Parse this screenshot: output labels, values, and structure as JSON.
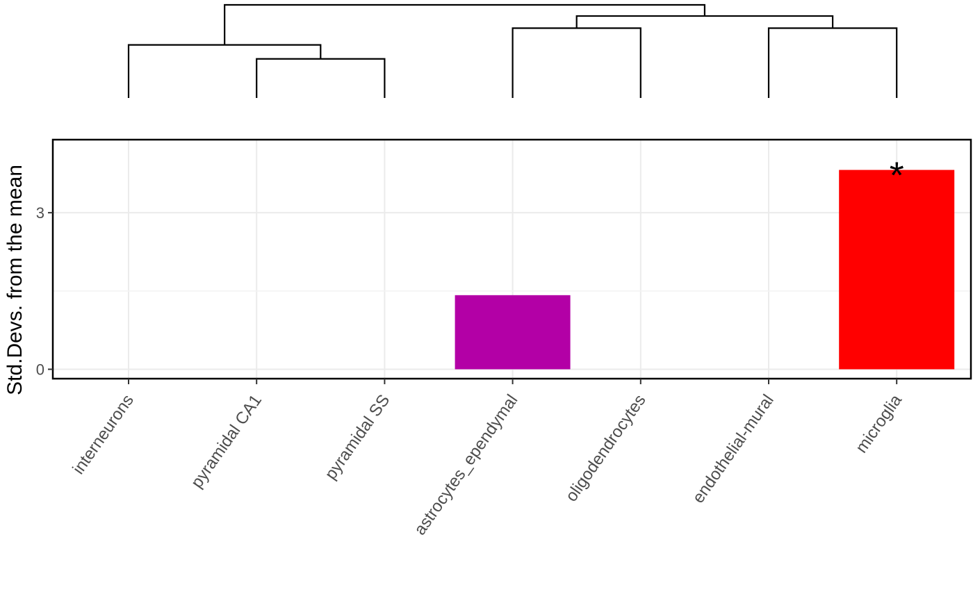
{
  "chart_data": {
    "type": "bar",
    "ylabel": "Std.Devs. from the mean",
    "ylim": [
      -0.18,
      4.4
    ],
    "yticks": [
      {
        "value": 0,
        "label": "0"
      },
      {
        "value": 3,
        "label": "3"
      }
    ],
    "y_minor_gridlines": [
      1.5
    ],
    "grid": true,
    "categories": [
      "interneurons",
      "pyramidal CA1",
      "pyramidal SS",
      "astrocytes_ependymal",
      "oligodendrocytes",
      "endothelial-mural",
      "microglia"
    ],
    "values": [
      0,
      0,
      0,
      1.42,
      0,
      0,
      3.82
    ],
    "bar_colors": [
      "#000000",
      "#000000",
      "#000000",
      "#b300a6",
      "#000000",
      "#000000",
      "#ff0000"
    ],
    "annotations": [
      {
        "category": "microglia",
        "label": "*"
      }
    ],
    "dendrogram": {
      "merges": [
        {
          "left": "pyramidal CA1",
          "right": "pyramidal SS",
          "height": 0.42
        },
        {
          "left": "interneurons",
          "right": "pyramidal CA1 + pyramidal SS",
          "height": 0.57
        },
        {
          "left": "astrocytes_ependymal",
          "right": "oligodendrocytes",
          "height": 0.75
        },
        {
          "left": "endothelial-mural",
          "right": "microglia",
          "height": 0.75
        },
        {
          "left": "astrocytes_ependymal + oligodendrocytes",
          "right": "endothelial-mural + microglia",
          "height": 0.88
        },
        {
          "left": "interneurons + pyramidal CA1 + pyramidal SS",
          "right": "astrocytes_ependymal + oligodendrocytes + endothelial-mural + microglia",
          "height": 1.0
        }
      ]
    }
  }
}
